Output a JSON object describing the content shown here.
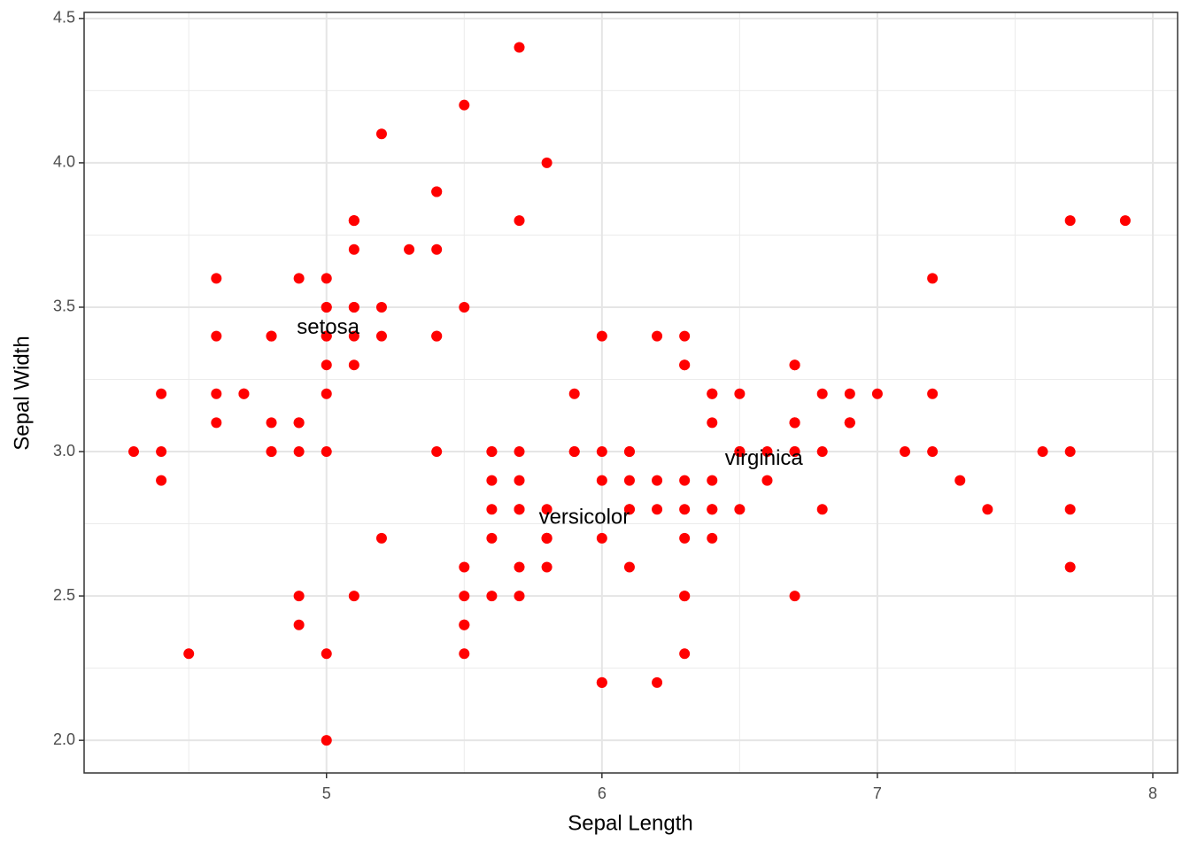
{
  "chart_data": {
    "type": "scatter",
    "x_label": "Sepal Length",
    "y_label": "Sepal Width",
    "color": "#ff0000",
    "grid": true,
    "xlim": [
      4.12,
      8.09
    ],
    "ylim": [
      1.887,
      4.521
    ],
    "xticks": [
      5,
      6,
      7,
      8
    ],
    "yticks": [
      {
        "value": 2,
        "label": "2.0"
      },
      {
        "value": 2.5,
        "label": "2.5"
      },
      {
        "value": 3,
        "label": "3.0"
      },
      {
        "value": 3.5,
        "label": "3.5"
      },
      {
        "value": 4,
        "label": "4.0"
      },
      {
        "value": 4.5,
        "label": "4.5"
      }
    ],
    "x_minor_grid": [
      4.5,
      5.5,
      6.5,
      7.5
    ],
    "y_minor_grid": [
      2.25,
      2.75,
      3.25,
      3.75,
      4.25
    ],
    "annotations": [
      {
        "text": "setosa",
        "x": 5.006,
        "y": 3.428
      },
      {
        "text": "versicolor",
        "x": 5.936,
        "y": 2.77
      },
      {
        "text": "virginica",
        "x": 6.588,
        "y": 2.974
      }
    ],
    "x": [
      5.1,
      4.9,
      4.7,
      4.6,
      5.0,
      5.4,
      4.6,
      5.0,
      4.4,
      4.9,
      5.4,
      4.8,
      4.8,
      4.3,
      5.8,
      5.7,
      5.4,
      5.1,
      5.7,
      5.1,
      5.4,
      5.1,
      4.6,
      5.1,
      4.8,
      5.0,
      5.0,
      5.2,
      5.2,
      4.7,
      4.8,
      5.4,
      5.2,
      5.5,
      4.9,
      5.0,
      5.5,
      4.9,
      4.4,
      5.1,
      5.0,
      4.5,
      4.4,
      5.0,
      5.1,
      4.8,
      5.1,
      4.6,
      5.3,
      5.0,
      7.0,
      6.4,
      6.9,
      5.5,
      6.5,
      5.7,
      6.3,
      4.9,
      6.6,
      5.2,
      5.0,
      5.9,
      6.0,
      6.1,
      5.6,
      6.7,
      5.6,
      5.8,
      6.2,
      5.6,
      5.9,
      6.1,
      6.3,
      6.1,
      6.4,
      6.6,
      6.8,
      6.7,
      6.0,
      5.7,
      5.5,
      5.5,
      5.8,
      6.0,
      5.4,
      6.0,
      6.7,
      6.3,
      5.6,
      5.5,
      5.5,
      6.1,
      5.8,
      5.0,
      5.6,
      5.7,
      5.7,
      6.2,
      5.1,
      5.7,
      6.3,
      5.8,
      7.1,
      6.3,
      6.5,
      7.6,
      4.9,
      7.3,
      6.7,
      7.2,
      6.5,
      6.4,
      6.8,
      5.7,
      5.8,
      6.4,
      6.5,
      7.7,
      7.7,
      6.0,
      6.9,
      5.6,
      7.7,
      6.3,
      6.7,
      7.2,
      6.2,
      6.1,
      6.4,
      7.2,
      7.4,
      7.9,
      6.4,
      6.3,
      6.1,
      7.7,
      6.3,
      6.4,
      6.0,
      6.9,
      6.7,
      6.9,
      5.8,
      6.8,
      6.7,
      6.7,
      6.3,
      6.5,
      6.2,
      5.9
    ],
    "values": [
      3.5,
      3.0,
      3.2,
      3.1,
      3.6,
      3.9,
      3.4,
      3.4,
      2.9,
      3.1,
      3.7,
      3.4,
      3.0,
      3.0,
      4.0,
      4.4,
      3.9,
      3.5,
      3.8,
      3.8,
      3.4,
      3.7,
      3.6,
      3.3,
      3.4,
      3.0,
      3.4,
      3.5,
      3.4,
      3.2,
      3.1,
      3.4,
      4.1,
      4.2,
      3.1,
      3.2,
      3.5,
      3.6,
      3.0,
      3.4,
      3.5,
      2.3,
      3.2,
      3.5,
      3.8,
      3.0,
      3.8,
      3.2,
      3.7,
      3.3,
      3.2,
      3.2,
      3.1,
      2.3,
      2.8,
      2.8,
      3.3,
      2.4,
      2.9,
      2.7,
      2.0,
      3.0,
      2.2,
      2.9,
      2.9,
      3.1,
      3.0,
      2.7,
      2.2,
      2.5,
      3.2,
      2.8,
      2.5,
      2.8,
      2.9,
      3.0,
      2.8,
      3.0,
      2.9,
      2.6,
      2.4,
      2.4,
      2.7,
      2.7,
      3.0,
      3.4,
      3.1,
      2.3,
      3.0,
      2.5,
      2.6,
      3.0,
      2.6,
      2.3,
      2.7,
      3.0,
      2.9,
      2.9,
      2.5,
      2.8,
      3.3,
      2.7,
      3.0,
      2.9,
      3.0,
      3.0,
      2.5,
      2.9,
      2.5,
      3.6,
      3.2,
      2.7,
      3.0,
      2.5,
      2.8,
      3.2,
      3.0,
      3.8,
      2.6,
      2.2,
      3.2,
      2.8,
      2.8,
      2.7,
      3.3,
      3.2,
      2.8,
      3.0,
      2.8,
      3.0,
      2.8,
      3.8,
      2.8,
      2.8,
      2.6,
      3.0,
      3.4,
      3.1,
      3.0,
      3.1,
      3.1,
      3.1,
      2.7,
      3.2,
      3.3,
      3.0,
      2.5,
      3.0,
      3.4,
      3.0
    ]
  }
}
